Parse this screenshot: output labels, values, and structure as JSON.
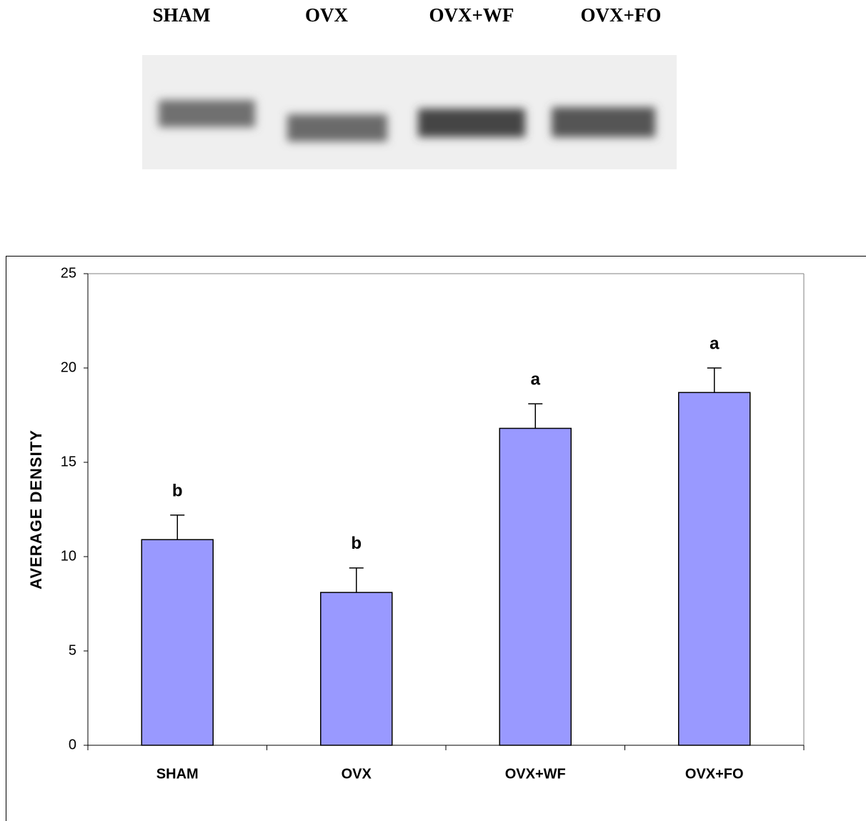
{
  "blot": {
    "lanes": [
      "SHAM",
      "OVX",
      "OVX+WF",
      "OVX+FO"
    ]
  },
  "chart_data": {
    "type": "bar",
    "ylabel": "AVERAGE DENSITY",
    "categories": [
      "SHAM",
      "OVX",
      "OVX+WF",
      "OVX+FO"
    ],
    "values": [
      10.9,
      8.1,
      16.8,
      18.7
    ],
    "errors": [
      1.3,
      1.3,
      1.3,
      1.3
    ],
    "annotations": [
      "b",
      "b",
      "a",
      "a"
    ],
    "color": "#9999ff",
    "ylim": [
      0,
      25
    ],
    "yticks": [
      0,
      5,
      10,
      15,
      20,
      25
    ],
    "grid": false
  }
}
